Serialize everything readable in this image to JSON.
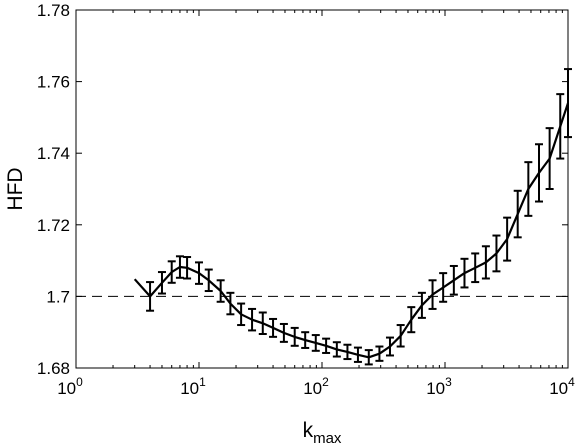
{
  "chart_data": {
    "type": "line",
    "xscale": "log",
    "xlabel": "k",
    "xlabel_sub": "max",
    "ylabel": "HFD",
    "xlim": [
      1,
      10000
    ],
    "ylim": [
      1.68,
      1.78
    ],
    "xticks": [
      {
        "value": 1,
        "base": "10",
        "exp": "0"
      },
      {
        "value": 10,
        "base": "10",
        "exp": "1"
      },
      {
        "value": 100,
        "base": "10",
        "exp": "2"
      },
      {
        "value": 1000,
        "base": "10",
        "exp": "3"
      },
      {
        "value": 10000,
        "base": "10",
        "exp": "4"
      }
    ],
    "yticks": [
      {
        "value": 1.68,
        "label": "1.68"
      },
      {
        "value": 1.7,
        "label": "1.7"
      },
      {
        "value": 1.72,
        "label": "1.72"
      },
      {
        "value": 1.74,
        "label": "1.74"
      },
      {
        "value": 1.76,
        "label": "1.76"
      },
      {
        "value": 1.78,
        "label": "1.78"
      }
    ],
    "reference_line": {
      "y": 1.7,
      "style": "dashed"
    },
    "grid": false,
    "series": [
      {
        "x": [
          3,
          4,
          5,
          6,
          7,
          8,
          10,
          12,
          15,
          18,
          22,
          27,
          33,
          40,
          49,
          60,
          73,
          89,
          108,
          132,
          161,
          196,
          240,
          293,
          357,
          436,
          532,
          649,
          792,
          966,
          1180,
          1440,
          1760,
          2150,
          2620,
          3200,
          3900,
          4760,
          5810,
          7090,
          8650,
          10000
        ],
        "y": [
          1.7048,
          1.7,
          1.7038,
          1.7068,
          1.7082,
          1.708,
          1.7065,
          1.7045,
          1.7015,
          1.698,
          1.695,
          1.6935,
          1.6925,
          1.6912,
          1.6898,
          1.6887,
          1.6878,
          1.687,
          1.6862,
          1.6852,
          1.6845,
          1.6837,
          1.683,
          1.684,
          1.686,
          1.689,
          1.6935,
          1.6975,
          1.7005,
          1.7025,
          1.7045,
          1.7065,
          1.708,
          1.7095,
          1.712,
          1.716,
          1.723,
          1.73,
          1.7345,
          1.7385,
          1.7475,
          1.754
        ],
        "error": [
          null,
          0.004,
          0.003,
          0.003,
          0.003,
          0.003,
          0.003,
          0.003,
          0.003,
          0.003,
          0.003,
          0.003,
          0.003,
          0.0025,
          0.0025,
          0.0025,
          0.0022,
          0.0022,
          0.002,
          0.002,
          0.002,
          0.002,
          0.002,
          0.002,
          0.0025,
          0.003,
          0.0035,
          0.0035,
          0.004,
          0.004,
          0.004,
          0.004,
          0.004,
          0.0045,
          0.005,
          0.006,
          0.0065,
          0.0075,
          0.008,
          0.0085,
          0.009,
          0.0095
        ]
      }
    ]
  }
}
